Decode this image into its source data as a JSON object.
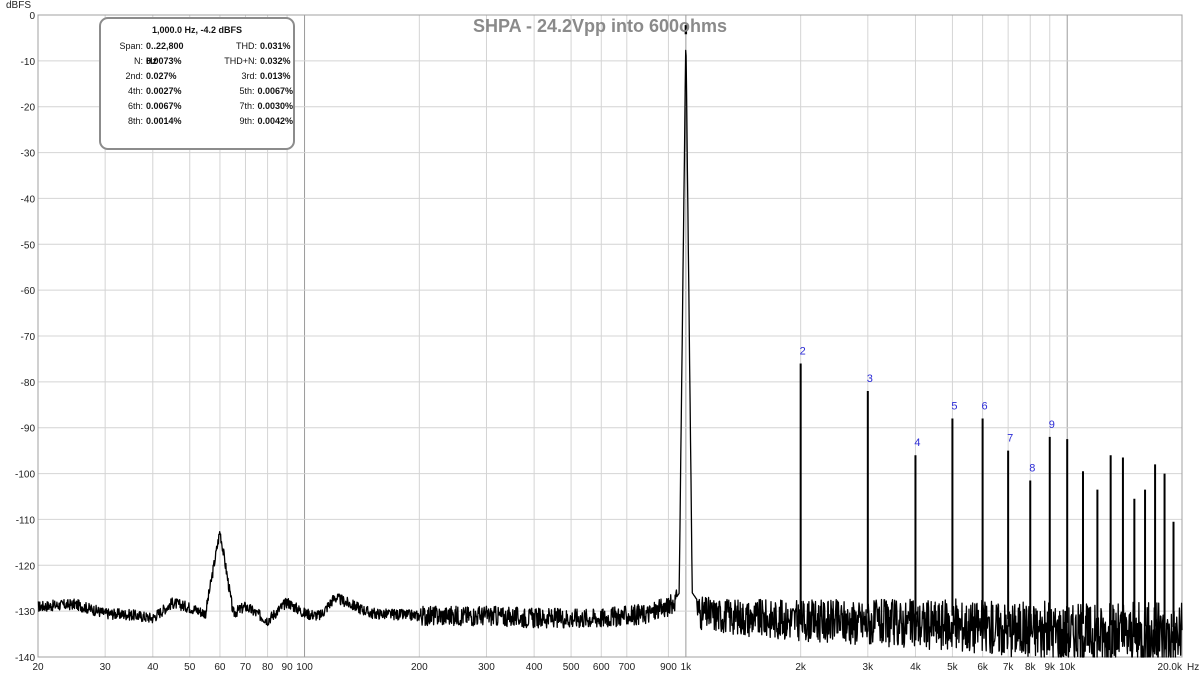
{
  "chart_data": {
    "type": "line",
    "title": "SHPA - 24.2Vpp into 600ohms",
    "ylabel": "dBFS",
    "x_unit": "Hz",
    "xscale": "log",
    "xlim": [
      20,
      20000
    ],
    "ylim": [
      -140,
      0
    ],
    "y_ticks": [
      0,
      -10,
      -20,
      -30,
      -40,
      -50,
      -60,
      -70,
      -80,
      -90,
      -100,
      -110,
      -120,
      -130,
      -140
    ],
    "y_tick_labels": [
      "0",
      "-10",
      "-20",
      "-30",
      "-40",
      "-50",
      "-60",
      "-70",
      "-80",
      "-90",
      "-100",
      "-110",
      "-120",
      "-130",
      "-140"
    ],
    "x_ticks": [
      20,
      30,
      40,
      50,
      60,
      70,
      80,
      90,
      100,
      200,
      300,
      400,
      500,
      600,
      700,
      900,
      1000,
      2000,
      3000,
      4000,
      5000,
      6000,
      7000,
      8000,
      9000,
      10000,
      20000
    ],
    "x_tick_labels": [
      "20",
      "30",
      "40",
      "50",
      "60",
      "70",
      "80",
      "90",
      "100",
      "200",
      "300",
      "400",
      "500",
      "600",
      "700",
      "900",
      "1k",
      "2k",
      "3k",
      "4k",
      "5k",
      "6k",
      "7k",
      "8k",
      "9k",
      "10k",
      "20.0k"
    ],
    "grid": true,
    "noise_floor": [
      [
        20,
        -129
      ],
      [
        25,
        -128.5
      ],
      [
        30,
        -130.5
      ],
      [
        35,
        -130.8
      ],
      [
        40,
        -131.5
      ],
      [
        45,
        -128.2
      ],
      [
        50,
        -129.2
      ],
      [
        55,
        -130.5
      ],
      [
        60,
        -112.5
      ],
      [
        65,
        -130.5
      ],
      [
        70,
        -129
      ],
      [
        80,
        -132
      ],
      [
        90,
        -128
      ],
      [
        100,
        -130.5
      ],
      [
        110,
        -131
      ],
      [
        120,
        -127
      ],
      [
        150,
        -130.5
      ],
      [
        200,
        -131
      ],
      [
        300,
        -131
      ],
      [
        400,
        -131.5
      ],
      [
        500,
        -131.5
      ],
      [
        600,
        -131.5
      ],
      [
        700,
        -131
      ],
      [
        800,
        -130.5
      ],
      [
        900,
        -129
      ],
      [
        960,
        -127
      ],
      [
        1000,
        -4.2
      ],
      [
        1040,
        -128
      ],
      [
        1100,
        -130.5
      ],
      [
        1500,
        -131.5
      ],
      [
        2000,
        -132
      ],
      [
        3000,
        -132.5
      ],
      [
        5000,
        -133
      ],
      [
        8000,
        -134
      ],
      [
        12000,
        -135
      ],
      [
        20000,
        -135.5
      ]
    ],
    "peaks": [
      {
        "label": "",
        "x": 1000,
        "y": -4.2
      },
      {
        "label": "2",
        "x": 2000,
        "y": -76
      },
      {
        "label": "3",
        "x": 3000,
        "y": -82
      },
      {
        "label": "4",
        "x": 4000,
        "y": -96
      },
      {
        "label": "5",
        "x": 5000,
        "y": -88
      },
      {
        "label": "6",
        "x": 6000,
        "y": -88
      },
      {
        "label": "7",
        "x": 7000,
        "y": -95
      },
      {
        "label": "8",
        "x": 8000,
        "y": -101.5
      },
      {
        "label": "9",
        "x": 9000,
        "y": -92
      },
      {
        "label": "",
        "x": 10000,
        "y": -92.5
      },
      {
        "label": "",
        "x": 11000,
        "y": -99.5
      },
      {
        "label": "",
        "x": 12000,
        "y": -103.5
      },
      {
        "label": "",
        "x": 13000,
        "y": -96
      },
      {
        "label": "",
        "x": 14000,
        "y": -96.5
      },
      {
        "label": "",
        "x": 15000,
        "y": -105.5
      },
      {
        "label": "",
        "x": 16000,
        "y": -103.5
      },
      {
        "label": "",
        "x": 17000,
        "y": -98
      },
      {
        "label": "",
        "x": 18000,
        "y": -100
      },
      {
        "label": "",
        "x": 19000,
        "y": -110.5
      }
    ]
  },
  "stats": {
    "header": "1,000.0 Hz, -4.2 dBFS",
    "rows": [
      [
        {
          "label": "Span:",
          "value": "0..22,800 Hz"
        },
        {
          "label": "THD:",
          "value": "0.031%"
        }
      ],
      [
        {
          "label": "N:",
          "value": "0.0073%"
        },
        {
          "label": "THD+N:",
          "value": "0.032%"
        }
      ],
      [
        {
          "label": "2nd:",
          "value": "0.027%"
        },
        {
          "label": "3rd:",
          "value": "0.013%"
        }
      ],
      [
        {
          "label": "4th:",
          "value": "0.0027%"
        },
        {
          "label": "5th:",
          "value": "0.0067%"
        }
      ],
      [
        {
          "label": "6th:",
          "value": "0.0067%"
        },
        {
          "label": "7th:",
          "value": "0.0030%"
        }
      ],
      [
        {
          "label": "8th:",
          "value": "0.0014%"
        },
        {
          "label": "9th:",
          "value": "0.0042%"
        }
      ]
    ]
  }
}
